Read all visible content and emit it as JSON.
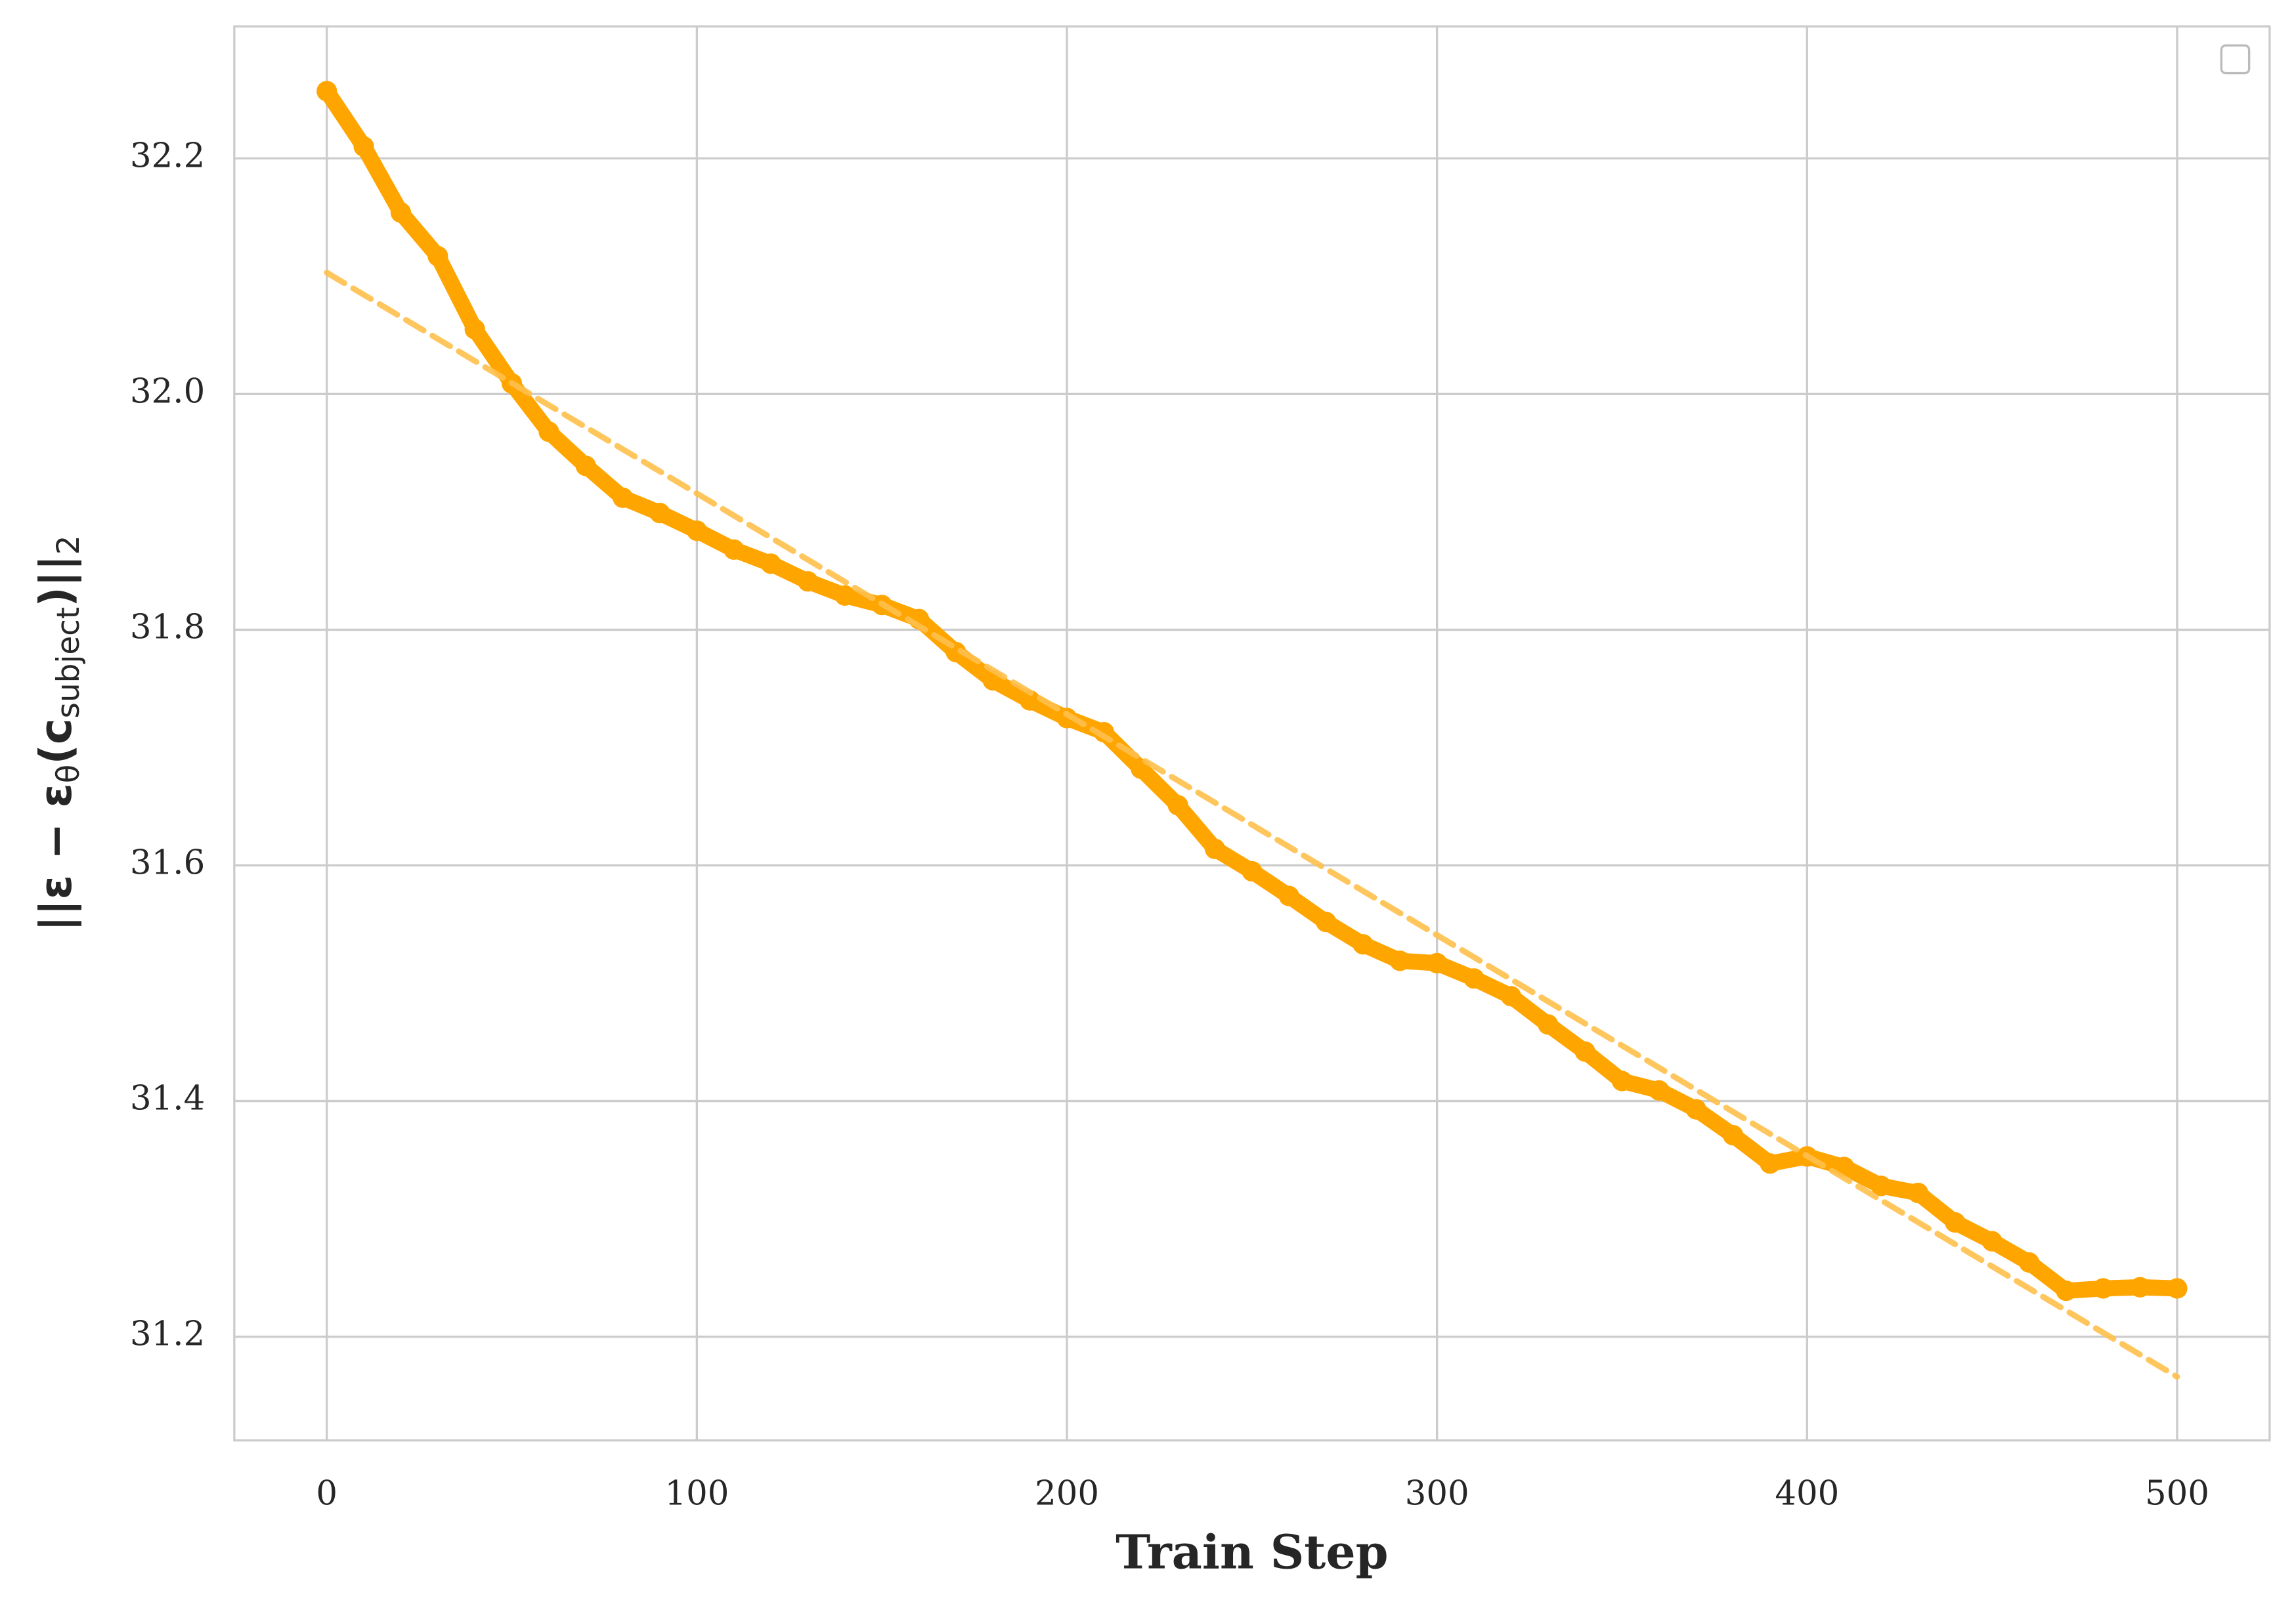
{
  "chart_data": {
    "type": "line",
    "x_label": "Train Step",
    "y_label": [
      "||ε − ε",
      "θ",
      "(c",
      "subject",
      ")||",
      "2"
    ],
    "x": [
      0,
      10,
      20,
      30,
      40,
      50,
      60,
      70,
      80,
      90,
      100,
      110,
      120,
      130,
      140,
      150,
      160,
      170,
      180,
      190,
      200,
      210,
      220,
      230,
      240,
      250,
      260,
      270,
      280,
      290,
      300,
      310,
      320,
      330,
      340,
      350,
      360,
      370,
      380,
      390,
      400,
      410,
      420,
      430,
      440,
      450,
      460,
      470,
      480,
      490,
      500
    ],
    "series": [
      {
        "color": "#ffa500",
        "style": "solid-markers",
        "values": [
          32.257,
          32.21,
          32.154,
          32.117,
          32.055,
          32.009,
          31.968,
          31.939,
          31.912,
          31.899,
          31.884,
          31.868,
          31.856,
          31.841,
          31.829,
          31.821,
          31.809,
          31.781,
          31.757,
          31.74,
          31.725,
          31.713,
          31.682,
          31.651,
          31.614,
          31.595,
          31.574,
          31.552,
          31.533,
          31.519,
          31.517,
          31.504,
          31.489,
          31.465,
          31.442,
          31.417,
          31.409,
          31.393,
          31.371,
          31.347,
          31.353,
          31.344,
          31.328,
          31.322,
          31.297,
          31.281,
          31.263,
          31.239,
          31.241,
          31.242,
          31.241
        ]
      },
      {
        "color": "#ffc04d",
        "style": "dashed",
        "x": [
          0,
          500
        ],
        "values": [
          32.103,
          31.166
        ]
      }
    ],
    "xlim": [
      -25,
      525
    ],
    "ylim": [
      31.112,
      32.312
    ],
    "xticks": [
      0,
      100,
      200,
      300,
      400,
      500
    ],
    "yticks": [
      31.2,
      31.4,
      31.6,
      31.8,
      {
        "value": 32,
        "label": "32.0"
      },
      32.2
    ],
    "grid": true
  }
}
